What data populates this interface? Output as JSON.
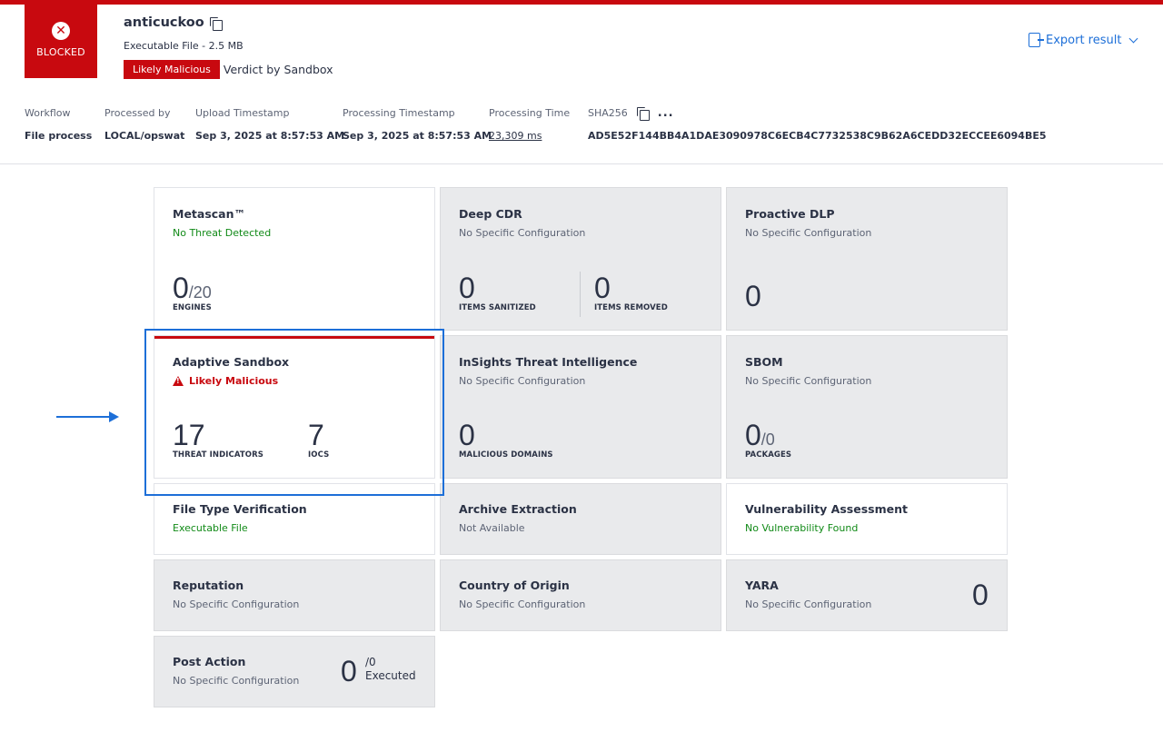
{
  "header": {
    "status_label": "BLOCKED",
    "status_icon": "close-icon",
    "file_name": "anticuckoo",
    "file_meta": "Executable File - 2.5 MB",
    "verdict_badge": "Likely Malicious",
    "verdict_source": "Verdict by Sandbox",
    "export_label": "Export result",
    "accent_color": "#c8090f",
    "link_color": "#1d6fd8"
  },
  "meta": {
    "workflow": {
      "label": "Workflow",
      "value": "File process"
    },
    "processed_by": {
      "label": "Processed by",
      "value": "LOCAL/opswat"
    },
    "upload": {
      "label": "Upload Timestamp",
      "value": "Sep 3, 2025 at 8:57:53 AM"
    },
    "processing_ts": {
      "label": "Processing Timestamp",
      "value": "Sep 3, 2025 at 8:57:53 AM"
    },
    "processing_time": {
      "label": "Processing Time",
      "value": "23,309 ms"
    },
    "sha": {
      "label": "SHA256",
      "value": "AD5E52F144BB4A1DAE3090978C6ECB4C7732538C9B62A6CEDD32ECCEE6094BE5",
      "more": "..."
    }
  },
  "cards": {
    "metascan": {
      "title": "Metascan™",
      "subtitle": "No Threat Detected",
      "count": "0",
      "total": "/20",
      "caption": "ENGINES"
    },
    "cdr": {
      "title": "Deep CDR",
      "subtitle": "No Specific Configuration",
      "sanitized": "0",
      "sanitized_caption": "ITEMS SANITIZED",
      "removed": "0",
      "removed_caption": "ITEMS REMOVED"
    },
    "dlp": {
      "title": "Proactive DLP",
      "subtitle": "No Specific Configuration",
      "count": "0"
    },
    "sandbox": {
      "title": "Adaptive Sandbox",
      "subtitle": "Likely Malicious",
      "indicators": "17",
      "indicators_caption": "THREAT INDICATORS",
      "iocs": "7",
      "iocs_caption": "IOCS"
    },
    "insights": {
      "title": "InSights Threat Intelligence",
      "subtitle": "No Specific Configuration",
      "count": "0",
      "caption": "MALICIOUS DOMAINS"
    },
    "sbom": {
      "title": "SBOM",
      "subtitle": "No Specific Configuration",
      "count": "0",
      "total": "/0",
      "caption": "PACKAGES"
    },
    "filetype": {
      "title": "File Type Verification",
      "subtitle": "Executable File"
    },
    "archive": {
      "title": "Archive Extraction",
      "subtitle": "Not Available"
    },
    "vuln": {
      "title": "Vulnerability Assessment",
      "subtitle": "No Vulnerability Found"
    },
    "reputation": {
      "title": "Reputation",
      "subtitle": "No Specific Configuration"
    },
    "origin": {
      "title": "Country of Origin",
      "subtitle": "No Specific Configuration"
    },
    "yara": {
      "title": "YARA",
      "subtitle": "No Specific Configuration",
      "count": "0"
    },
    "postaction": {
      "title": "Post Action",
      "subtitle": "No Specific Configuration",
      "count": "0",
      "total": "/0",
      "caption": "Executed"
    }
  }
}
